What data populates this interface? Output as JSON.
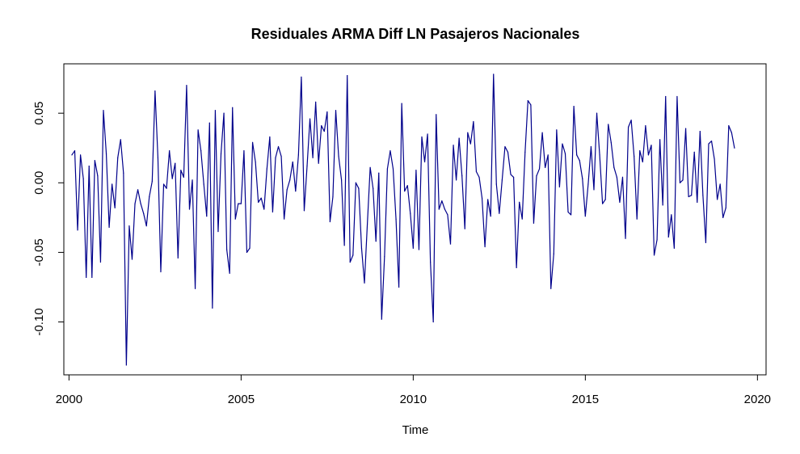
{
  "chart_data": {
    "type": "line",
    "title": "Residuales ARMA Diff LN Pasajeros Nacionales",
    "xlabel": "Time",
    "ylabel": "",
    "xlim": [
      1999.85,
      2020.25
    ],
    "ylim": [
      -0.138,
      0.0855
    ],
    "x_ticks": [
      2000,
      2005,
      2010,
      2015,
      2020
    ],
    "x_tick_labels": [
      "2000",
      "2005",
      "2010",
      "2015",
      "2020"
    ],
    "y_ticks": [
      -0.1,
      -0.05,
      0.0,
      0.05
    ],
    "y_tick_labels": [
      "-0.10",
      "-0.05",
      "0.00",
      "0.05"
    ],
    "x_start": 2000.0833,
    "x_step": 0.08333,
    "grid": false,
    "legend": "none",
    "line_color": "#00008B",
    "series": [
      {
        "values": [
          0.02,
          0.023,
          -0.034,
          0.02,
          0.003,
          -0.068,
          0.012,
          -0.068,
          0.016,
          0.005,
          -0.057,
          0.052,
          0.021,
          -0.032,
          -0.001,
          -0.018,
          0.018,
          0.031,
          0.007,
          -0.131,
          -0.031,
          -0.055,
          -0.015,
          -0.005,
          -0.015,
          -0.022,
          -0.031,
          -0.01,
          0.001,
          0.066,
          0.018,
          -0.064,
          -0.001,
          -0.004,
          0.023,
          0.003,
          0.014,
          -0.054,
          0.009,
          0.004,
          0.07,
          -0.019,
          0.002,
          -0.076,
          0.038,
          0.023,
          -0.001,
          -0.024,
          0.043,
          -0.09,
          0.052,
          -0.035,
          0.021,
          0.05,
          -0.048,
          -0.065,
          0.054,
          -0.026,
          -0.015,
          -0.015,
          0.023,
          -0.05,
          -0.047,
          0.029,
          0.015,
          -0.014,
          -0.011,
          -0.019,
          0.01,
          0.033,
          -0.021,
          0.018,
          0.026,
          0.019,
          -0.026,
          -0.005,
          0.002,
          0.015,
          -0.006,
          0.02,
          0.076,
          -0.02,
          0.012,
          0.046,
          0.018,
          0.058,
          0.014,
          0.041,
          0.037,
          0.051,
          -0.028,
          -0.01,
          0.052,
          0.019,
          0.002,
          -0.045,
          0.077,
          -0.057,
          -0.052,
          0.0,
          -0.004,
          -0.047,
          -0.072,
          -0.03,
          0.011,
          -0.004,
          -0.042,
          0.007,
          -0.098,
          -0.053,
          0.01,
          0.023,
          0.01,
          -0.026,
          -0.075,
          0.057,
          -0.006,
          -0.002,
          -0.022,
          -0.047,
          0.009,
          -0.048,
          0.033,
          0.015,
          0.035,
          -0.057,
          -0.1,
          0.049,
          -0.019,
          -0.013,
          -0.019,
          -0.023,
          -0.044,
          0.027,
          0.002,
          0.032,
          0.005,
          -0.033,
          0.036,
          0.028,
          0.044,
          0.008,
          0.004,
          -0.011,
          -0.046,
          -0.012,
          -0.024,
          0.078,
          -0.001,
          -0.022,
          0.002,
          0.026,
          0.022,
          0.006,
          0.004,
          -0.061,
          -0.014,
          -0.026,
          0.022,
          0.059,
          0.056,
          -0.029,
          0.005,
          0.01,
          0.036,
          0.011,
          0.02,
          -0.076,
          -0.051,
          0.038,
          -0.003,
          0.028,
          0.021,
          -0.021,
          -0.023,
          0.055,
          0.02,
          0.016,
          0.003,
          -0.024,
          -0.001,
          0.026,
          -0.005,
          0.05,
          0.02,
          -0.015,
          -0.012,
          0.042,
          0.029,
          0.011,
          0.004,
          -0.014,
          0.004,
          -0.04,
          0.04,
          0.045,
          0.019,
          -0.026,
          0.023,
          0.015,
          0.041,
          0.02,
          0.027,
          -0.052,
          -0.041,
          0.031,
          -0.016,
          0.062,
          -0.039,
          -0.023,
          -0.047,
          0.062,
          0.0,
          0.002,
          0.039,
          -0.01,
          -0.009,
          0.022,
          -0.014,
          0.037,
          -0.009,
          -0.043,
          0.028,
          0.03,
          0.017,
          -0.012,
          -0.001,
          -0.025,
          -0.018,
          0.041,
          0.036,
          0.025
        ]
      }
    ]
  }
}
